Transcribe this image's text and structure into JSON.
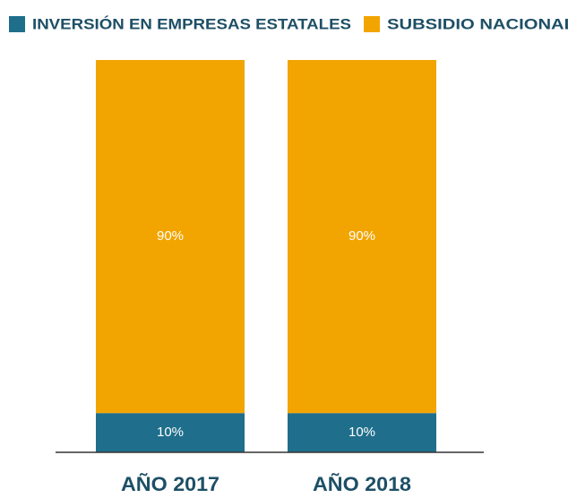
{
  "chart_data": {
    "type": "stacked_bar",
    "categories": [
      "AÑO 2017",
      "AÑO 2018"
    ],
    "series": [
      {
        "name": "INVERSIÓN EN EMPRESAS ESTATALES",
        "color": "#1f6e8c",
        "values": [
          10,
          10
        ],
        "value_labels": [
          "10%",
          "10%"
        ]
      },
      {
        "name": "SUBSIDIO NACIONAL",
        "color": "#f2a500",
        "values": [
          90,
          90
        ],
        "value_labels": [
          "90%",
          "90%"
        ]
      }
    ],
    "ylim": [
      0,
      100
    ],
    "legend": "top"
  }
}
